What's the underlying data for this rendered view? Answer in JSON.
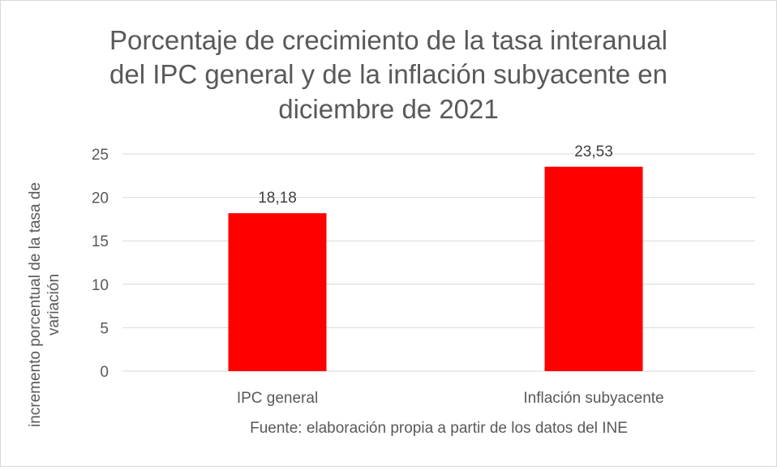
{
  "chart_data": {
    "type": "bar",
    "title": [
      "Porcentaje de crecimiento de la tasa interanual",
      "del IPC general y de la inflación subyacente en",
      "diciembre de 2021"
    ],
    "categories": [
      "IPC general",
      "Inflación subyacente"
    ],
    "values": [
      18.18,
      23.53
    ],
    "data_labels": [
      "18,18",
      "23,53"
    ],
    "xlabel": "Fuente: elaboración propia a partir de los datos del INE",
    "ylabel": [
      "incremento porcentual de la tasa de",
      "variación"
    ],
    "ylim": [
      0,
      25
    ],
    "yticks": [
      0,
      5,
      10,
      15,
      20,
      25
    ],
    "grid": true,
    "legend": "none",
    "colors": {
      "bar": "#ff0000",
      "grid": "#d9d9d9",
      "text": "#404040",
      "title": "#595959",
      "axis_text": "#595959"
    }
  }
}
